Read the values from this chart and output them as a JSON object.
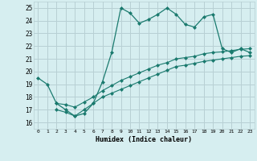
{
  "xlabel": "Humidex (Indice chaleur)",
  "bg_color": "#d6eef0",
  "grid_color": "#b8d0d4",
  "line_color": "#1a7a6e",
  "xlim": [
    -0.5,
    23.5
  ],
  "ylim": [
    15.5,
    25.5
  ],
  "xticks": [
    0,
    1,
    2,
    3,
    4,
    5,
    6,
    7,
    8,
    9,
    10,
    11,
    12,
    13,
    14,
    15,
    16,
    17,
    18,
    19,
    20,
    21,
    22,
    23
  ],
  "yticks": [
    16,
    17,
    18,
    19,
    20,
    21,
    22,
    23,
    24,
    25
  ],
  "line1_x": [
    0,
    1,
    2,
    3,
    4,
    5,
    6,
    7,
    8,
    9,
    10,
    11,
    12,
    13,
    14,
    15,
    16,
    17,
    18,
    19,
    20,
    21,
    22,
    23
  ],
  "line1_y": [
    19.5,
    19.0,
    17.5,
    17.0,
    16.5,
    16.7,
    17.5,
    19.2,
    21.5,
    25.0,
    24.6,
    23.8,
    24.1,
    24.5,
    25.0,
    24.5,
    23.7,
    23.5,
    24.3,
    24.5,
    21.8,
    21.5,
    21.8,
    21.5
  ],
  "line2_x": [
    2,
    3,
    4,
    5,
    6,
    7,
    8,
    9,
    10,
    11,
    12,
    13,
    14,
    15,
    16,
    17,
    18,
    19,
    20,
    21,
    22,
    23
  ],
  "line2_y": [
    17.5,
    17.4,
    17.2,
    17.6,
    18.0,
    18.5,
    18.9,
    19.3,
    19.6,
    19.9,
    20.2,
    20.5,
    20.7,
    21.0,
    21.1,
    21.2,
    21.4,
    21.5,
    21.55,
    21.65,
    21.75,
    21.8
  ],
  "line3_x": [
    2,
    3,
    4,
    5,
    6,
    7,
    8,
    9,
    10,
    11,
    12,
    13,
    14,
    15,
    16,
    17,
    18,
    19,
    20,
    21,
    22,
    23
  ],
  "line3_y": [
    17.0,
    16.8,
    16.5,
    17.0,
    17.5,
    18.0,
    18.3,
    18.6,
    18.9,
    19.2,
    19.5,
    19.8,
    20.1,
    20.4,
    20.5,
    20.65,
    20.8,
    20.9,
    21.0,
    21.1,
    21.2,
    21.25
  ]
}
